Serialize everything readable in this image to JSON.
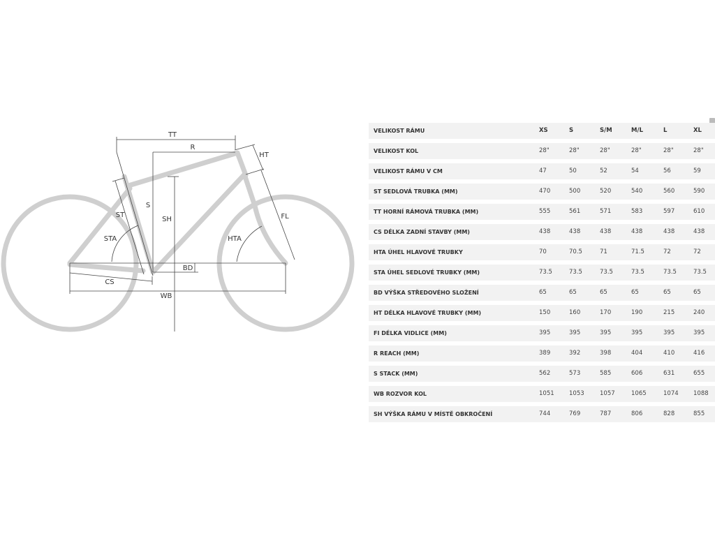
{
  "diagram": {
    "labels": {
      "tt": "TT",
      "r": "R",
      "ht": "HT",
      "st": "ST",
      "s": "S",
      "sh": "SH",
      "fl": "FL",
      "sta": "STA",
      "hta": "HTA",
      "bd": "BD",
      "cs": "CS",
      "wb": "WB"
    }
  },
  "table": {
    "header": {
      "label": "VELIKOST RÁMU",
      "sizes": [
        "XS",
        "S",
        "S/M",
        "M/L",
        "L",
        "XL"
      ]
    },
    "rows": [
      {
        "label": "VELIKOST KOL",
        "values": [
          "28\"",
          "28\"",
          "28\"",
          "28\"",
          "28\"",
          "28\""
        ]
      },
      {
        "label": "VELIKOST RÁMU V CM",
        "values": [
          "47",
          "50",
          "52",
          "54",
          "56",
          "59"
        ]
      },
      {
        "label": "ST SEDLOVÁ TRUBKA (MM)",
        "values": [
          "470",
          "500",
          "520",
          "540",
          "560",
          "590"
        ]
      },
      {
        "label": "TT HORNÍ RÁMOVÁ TRUBKA (MM)",
        "values": [
          "555",
          "561",
          "571",
          "583",
          "597",
          "610"
        ]
      },
      {
        "label": "CS DÉLKA ZADNÍ STAVBY (MM)",
        "values": [
          "438",
          "438",
          "438",
          "438",
          "438",
          "438"
        ]
      },
      {
        "label": "HTA ÚHEL HLAVOVÉ TRUBKY",
        "values": [
          "70",
          "70.5",
          "71",
          "71.5",
          "72",
          "72"
        ]
      },
      {
        "label": "STA ÚHEL SEDLOVÉ TRUBKY (MM)",
        "values": [
          "73.5",
          "73.5",
          "73.5",
          "73.5",
          "73.5",
          "73.5"
        ]
      },
      {
        "label": "BD VÝŠKA STŘEDOVÉHO SLOŽENÍ",
        "values": [
          "65",
          "65",
          "65",
          "65",
          "65",
          "65"
        ]
      },
      {
        "label": "HT DÉLKA HLAVOVÉ TRUBKY (MM)",
        "values": [
          "150",
          "160",
          "170",
          "190",
          "215",
          "240"
        ]
      },
      {
        "label": "FI DÉLKA VIDLICE (MM)",
        "values": [
          "395",
          "395",
          "395",
          "395",
          "395",
          "395"
        ]
      },
      {
        "label": "R REACH (MM)",
        "values": [
          "389",
          "392",
          "398",
          "404",
          "410",
          "416"
        ]
      },
      {
        "label": "S STACK (MM)",
        "values": [
          "562",
          "573",
          "585",
          "606",
          "631",
          "655"
        ]
      },
      {
        "label": "WB ROZVOR KOL",
        "values": [
          "1051",
          "1053",
          "1057",
          "1065",
          "1074",
          "1088"
        ]
      },
      {
        "label": "SH VÝŠKA RÁMU V MÍSTĚ OBKROČENÍ",
        "values": [
          "744",
          "769",
          "787",
          "806",
          "828",
          "855"
        ]
      }
    ]
  }
}
